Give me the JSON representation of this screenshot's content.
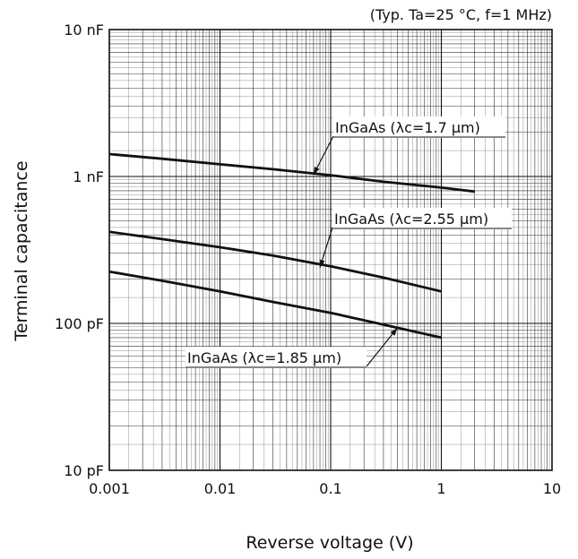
{
  "chart_data": {
    "type": "line",
    "title": "",
    "condition_note": "(Typ. Ta=25 °C, f=1 MHz)",
    "xlabel": "Reverse voltage (V)",
    "ylabel": "Terminal capacitance",
    "x_scale": "log",
    "y_scale": "log",
    "xlim": [
      0.001,
      10
    ],
    "ylim": [
      1e-11,
      1e-08
    ],
    "x_ticks": [
      {
        "value": 0.001,
        "label": "0.001"
      },
      {
        "value": 0.01,
        "label": "0.01"
      },
      {
        "value": 0.1,
        "label": "0.1"
      },
      {
        "value": 1,
        "label": "1"
      },
      {
        "value": 10,
        "label": "10"
      }
    ],
    "y_ticks": [
      {
        "value": 1e-11,
        "label": "10 pF"
      },
      {
        "value": 1e-10,
        "label": "100 pF"
      },
      {
        "value": 1e-09,
        "label": "1 nF"
      },
      {
        "value": 1e-08,
        "label": "10 nF"
      }
    ],
    "grid": true,
    "series": [
      {
        "name": "InGaAs (λc=1.7 μm)",
        "x": [
          0.001,
          0.003,
          0.01,
          0.03,
          0.1,
          0.3,
          1,
          2
        ],
        "y": [
          1.42e-09,
          1.32e-09,
          1.21e-09,
          1.12e-09,
          1.02e-09,
          9.2e-10,
          8.4e-10,
          7.9e-10
        ]
      },
      {
        "name": "InGaAs (λc=2.55 μm)",
        "x": [
          0.001,
          0.003,
          0.01,
          0.03,
          0.1,
          0.3,
          1
        ],
        "y": [
          4.2e-10,
          3.75e-10,
          3.3e-10,
          2.9e-10,
          2.45e-10,
          2.05e-10,
          1.65e-10
        ]
      },
      {
        "name": "InGaAs (λc=1.85 μm)",
        "x": [
          0.001,
          0.003,
          0.01,
          0.03,
          0.1,
          0.3,
          1
        ],
        "y": [
          2.25e-10,
          1.95e-10,
          1.65e-10,
          1.4e-10,
          1.18e-10,
          9.8e-11,
          8e-11
        ]
      }
    ],
    "annotations": [
      {
        "series": "InGaAs (λc=1.7 μm)",
        "text": "InGaAs (λc=1.7 μm)",
        "point": [
          0.07,
          1.03e-09
        ]
      },
      {
        "series": "InGaAs (λc=2.55 μm)",
        "text": "InGaAs (λc=2.55 μm)",
        "point": [
          0.08,
          2.4e-10
        ]
      },
      {
        "series": "InGaAs (λc=1.85 μm)",
        "text": "InGaAs (λc=1.85 μm)",
        "point": [
          0.4,
          9.3e-11
        ]
      }
    ],
    "line_color": "#111111"
  }
}
